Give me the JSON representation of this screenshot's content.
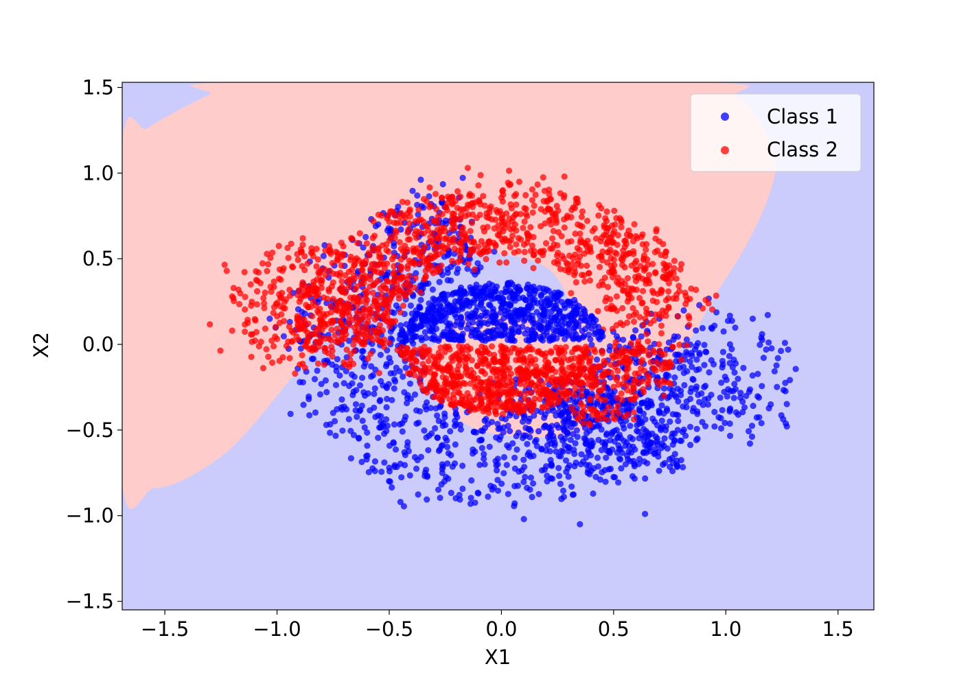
{
  "chart_data": {
    "type": "scatter",
    "xlabel": "X1",
    "ylabel": "X2",
    "xlim": [
      -1.69,
      1.66
    ],
    "ylim": [
      -1.55,
      1.53
    ],
    "x_ticks": [
      -1.5,
      -1.0,
      -0.5,
      0.0,
      0.5,
      1.0,
      1.5
    ],
    "y_ticks": [
      -1.5,
      -1.0,
      -0.5,
      0.0,
      0.5,
      1.0,
      1.5
    ],
    "x_tick_labels": [
      "−1.5",
      "−1.0",
      "−0.5",
      "0.0",
      "0.5",
      "1.0",
      "1.5"
    ],
    "y_tick_labels": [
      "−1.5",
      "−1.0",
      "−0.5",
      "0.0",
      "0.5",
      "1.0",
      "1.5"
    ],
    "legend_position": "upper right",
    "legend": [
      "Class 1",
      "Class 2"
    ],
    "colors": {
      "class1_point": "#0000ff",
      "class2_point": "#ff0000",
      "region_class1": "#ccccfc",
      "region_class2": "#ffcccc"
    },
    "decision_region_class2": [
      [
        -1.69,
        1.15
      ],
      [
        -1.58,
        1.26
      ],
      [
        -1.45,
        1.36
      ],
      [
        -1.3,
        1.46
      ],
      [
        -1.2,
        1.53
      ],
      [
        0.9,
        1.53
      ],
      [
        1.05,
        1.45
      ],
      [
        1.15,
        1.3
      ],
      [
        1.22,
        1.1
      ],
      [
        1.2,
        0.9
      ],
      [
        1.1,
        0.6
      ],
      [
        0.95,
        0.28
      ],
      [
        0.85,
        0.05
      ],
      [
        0.75,
        -0.1
      ],
      [
        0.6,
        -0.3
      ],
      [
        0.45,
        -0.45
      ],
      [
        0.3,
        -0.53
      ],
      [
        0.1,
        -0.54
      ],
      [
        -0.1,
        -0.5
      ],
      [
        -0.25,
        -0.38
      ],
      [
        -0.33,
        -0.25
      ],
      [
        -0.35,
        -0.12
      ],
      [
        -0.3,
        0.0
      ],
      [
        -0.2,
        0.15
      ],
      [
        0.0,
        0.2
      ],
      [
        0.15,
        0.15
      ],
      [
        0.28,
        0.05
      ],
      [
        0.3,
        0.25
      ],
      [
        0.2,
        0.45
      ],
      [
        0.0,
        0.53
      ],
      [
        -0.2,
        0.53
      ],
      [
        -0.4,
        0.48
      ],
      [
        -0.55,
        0.4
      ],
      [
        -0.7,
        0.2
      ],
      [
        -0.85,
        -0.05
      ],
      [
        -1.0,
        -0.3
      ],
      [
        -1.2,
        -0.6
      ],
      [
        -1.4,
        -0.78
      ],
      [
        -1.55,
        -0.84
      ],
      [
        -1.69,
        -0.8
      ]
    ],
    "series": [
      {
        "name": "Class 1",
        "clusters": [
          {
            "shape": "ring",
            "cx": 0.0,
            "cy": 0.0,
            "r_min": 0.42,
            "r_max": 0.95,
            "theta_start": 100,
            "theta_end": 360,
            "count": 950,
            "seed": 11
          },
          {
            "shape": "disk",
            "cx": 0.0,
            "cy": 0.0,
            "radius": 0.38,
            "half": "upper",
            "count": 650,
            "seed": 12
          },
          {
            "shape": "ring",
            "cx": 0.55,
            "cy": -0.12,
            "r_min": 0.2,
            "r_max": 0.65,
            "theta_start": 190,
            "theta_end": 300,
            "count": 300,
            "seed": 13
          },
          {
            "shape": "ring",
            "cx": 0.9,
            "cy": -0.2,
            "r_min": 0.05,
            "r_max": 0.45,
            "theta_start": 0,
            "theta_end": 360,
            "count": 220,
            "seed": 14
          }
        ],
        "outliers": [
          {
            "x": 1.18,
            "y": -0.03
          },
          {
            "x": 1.12,
            "y": 0.15
          },
          {
            "x": -0.5,
            "y": -0.72
          },
          {
            "x": -0.45,
            "y": -0.92
          },
          {
            "x": 0.35,
            "y": -1.05
          },
          {
            "x": 0.1,
            "y": -1.02
          },
          {
            "x": 0.64,
            "y": -0.99
          },
          {
            "x": -0.75,
            "y": -0.4
          },
          {
            "x": -0.78,
            "y": -0.47
          }
        ]
      },
      {
        "name": "Class 2",
        "clusters": [
          {
            "shape": "ring",
            "cx": 0.0,
            "cy": 0.0,
            "r_min": 0.52,
            "r_max": 0.93,
            "theta_start": 10,
            "theta_end": 180,
            "count": 1000,
            "seed": 21
          },
          {
            "shape": "ring",
            "cx": -0.85,
            "cy": 0.2,
            "r_min": 0.1,
            "r_max": 0.4,
            "theta_start": 0,
            "theta_end": 360,
            "count": 280,
            "seed": 22
          },
          {
            "shape": "disk",
            "cx": 0.0,
            "cy": 0.0,
            "radius": 0.38,
            "half": "lower",
            "count": 650,
            "seed": 23
          },
          {
            "shape": "ring",
            "cx": 0.35,
            "cy": 0.0,
            "r_min": 0.15,
            "r_max": 0.45,
            "theta_start": 270,
            "theta_end": 360,
            "count": 200,
            "seed": 24
          }
        ],
        "outliers": [
          {
            "x": -1.2,
            "y": 0.28
          },
          {
            "x": -1.2,
            "y": 0.08
          },
          {
            "x": -0.15,
            "y": 1.03
          },
          {
            "x": 0.69,
            "y": 0.66
          },
          {
            "x": 0.75,
            "y": 0.41
          },
          {
            "x": 0.72,
            "y": 0.39
          }
        ]
      }
    ]
  }
}
